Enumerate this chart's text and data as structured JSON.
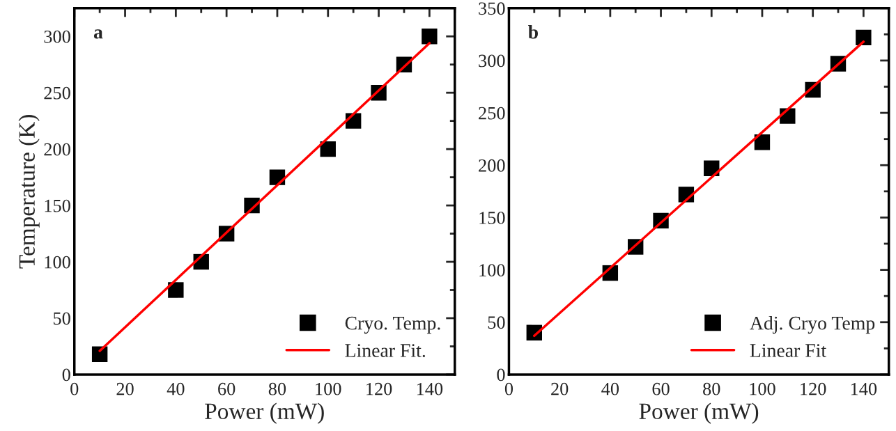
{
  "chart_data": [
    {
      "type": "scatter",
      "annotations": [
        "a"
      ],
      "xlabel": "Power (mW)",
      "ylabel": "Temperature (K)",
      "xlim": [
        0,
        150
      ],
      "xticks": [
        0,
        20,
        40,
        60,
        80,
        100,
        120,
        140
      ],
      "ylim": [
        0,
        325
      ],
      "yticks": [
        0,
        50,
        100,
        150,
        200,
        250,
        300
      ],
      "grid": false,
      "legend": "bottom right",
      "series": [
        {
          "name": "Cryo. Temp.",
          "marker": "square",
          "color": "#000000",
          "x": [
            10,
            40,
            50,
            60,
            70,
            80,
            100,
            110,
            120,
            130,
            140
          ],
          "values": [
            18,
            75,
            100,
            125,
            150,
            175,
            200,
            225,
            250,
            275,
            300
          ]
        },
        {
          "name": "Linear Fit.",
          "type": "line",
          "marker": "none",
          "color": "#ff0000",
          "line_style": "solid",
          "x": [
            10,
            140
          ],
          "values": [
            21,
            294
          ]
        }
      ]
    },
    {
      "type": "scatter",
      "annotations": [
        "b"
      ],
      "xlabel": "Power (mW)",
      "xlim": [
        0,
        150
      ],
      "xticks": [
        0,
        20,
        40,
        60,
        80,
        100,
        120,
        140
      ],
      "ylim": [
        0,
        350
      ],
      "yticks": [
        0,
        50,
        100,
        150,
        200,
        250,
        300,
        350
      ],
      "grid": false,
      "legend": "bottom right",
      "series": [
        {
          "name": "Adj. Cryo Temp",
          "marker": "square",
          "color": "#000000",
          "x": [
            10,
            40,
            50,
            60,
            70,
            80,
            100,
            110,
            120,
            130,
            140
          ],
          "values": [
            40,
            97,
            122,
            147,
            172,
            197,
            222,
            247,
            272,
            297,
            322
          ]
        },
        {
          "name": "Linear Fit",
          "type": "line",
          "marker": "none",
          "color": "#ff0000",
          "line_style": "solid",
          "x": [
            10,
            140
          ],
          "values": [
            37,
            318
          ]
        }
      ]
    }
  ]
}
